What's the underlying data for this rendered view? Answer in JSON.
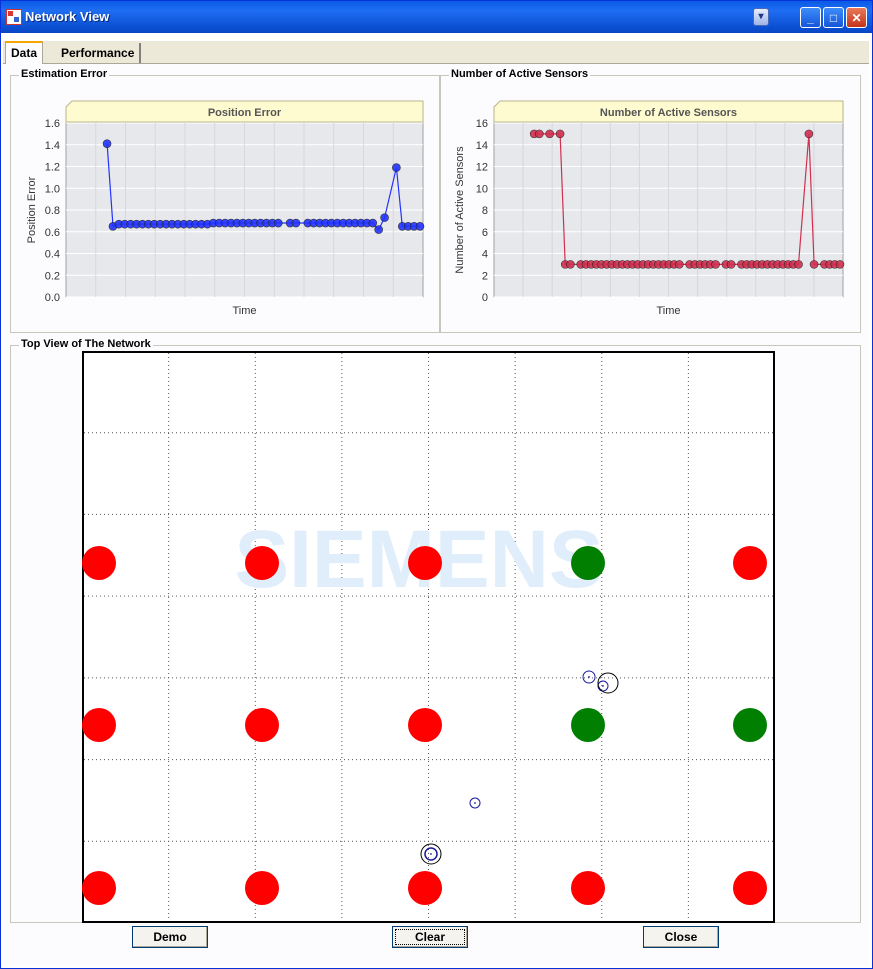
{
  "window": {
    "title": "Network View"
  },
  "tabs": [
    {
      "label": "Data",
      "active": true
    },
    {
      "label": "Performance",
      "active": false
    }
  ],
  "groups": {
    "estimation": "Estimation Error",
    "sensors": "Number of Active Sensors",
    "topview": "Top View of The Network"
  },
  "chart_data": [
    {
      "type": "line",
      "title": "Position Error",
      "xlabel": "Time",
      "ylabel": "Position Error",
      "ylim": [
        0,
        1.6
      ],
      "yticks": [
        "0.0",
        "0.2",
        "0.4",
        "0.6",
        "0.8",
        "1.0",
        "1.2",
        "1.4",
        "1.6"
      ],
      "grid": true,
      "color": "#2233ff",
      "values": [
        1.41,
        0.65,
        0.67,
        0.67,
        0.67,
        0.67,
        0.67,
        0.67,
        0.67,
        0.67,
        0.67,
        0.67,
        0.67,
        0.67,
        0.67,
        0.67,
        0.67,
        0.67,
        0.68,
        0.68,
        0.68,
        0.68,
        0.68,
        0.68,
        0.68,
        0.68,
        0.68,
        0.68,
        0.68,
        0.68,
        null,
        0.68,
        0.68,
        null,
        0.68,
        0.68,
        0.68,
        0.68,
        0.68,
        0.68,
        0.68,
        0.68,
        0.68,
        0.68,
        0.68,
        0.68,
        0.62,
        0.73,
        null,
        1.19,
        0.65,
        0.65,
        0.65,
        0.65
      ]
    },
    {
      "type": "line",
      "title": "Number of Active Sensors",
      "xlabel": "Time",
      "ylabel": "Number of Active Sensors",
      "ylim": [
        0,
        16
      ],
      "yticks": [
        "0",
        "2",
        "4",
        "6",
        "8",
        "10",
        "12",
        "14",
        "16"
      ],
      "grid": true,
      "color": "#d03050",
      "values": [
        15,
        15,
        null,
        15,
        null,
        15,
        3,
        3,
        null,
        3,
        3,
        3,
        3,
        3,
        3,
        3,
        3,
        3,
        3,
        3,
        3,
        3,
        3,
        3,
        3,
        3,
        3,
        3,
        3,
        null,
        3,
        3,
        3,
        3,
        3,
        3,
        null,
        3,
        3,
        null,
        3,
        3,
        3,
        3,
        3,
        3,
        3,
        3,
        3,
        3,
        3,
        3,
        null,
        15,
        3,
        null,
        3,
        3,
        3,
        3
      ]
    }
  ],
  "network": {
    "watermark": "SIEMENS",
    "grid_cols": 8,
    "grid_rows": 7,
    "sensors": [
      {
        "col": 0,
        "row": 0,
        "active": false
      },
      {
        "col": 1,
        "row": 0,
        "active": false
      },
      {
        "col": 2,
        "row": 0,
        "active": false
      },
      {
        "col": 3,
        "row": 0,
        "active": true
      },
      {
        "col": 4,
        "row": 0,
        "active": false
      },
      {
        "col": 0,
        "row": 1,
        "active": false
      },
      {
        "col": 1,
        "row": 1,
        "active": false
      },
      {
        "col": 2,
        "row": 1,
        "active": false
      },
      {
        "col": 3,
        "row": 1,
        "active": true
      },
      {
        "col": 4,
        "row": 1,
        "active": true
      },
      {
        "col": 0,
        "row": 2,
        "active": false
      },
      {
        "col": 1,
        "row": 2,
        "active": false
      },
      {
        "col": 2,
        "row": 2,
        "active": false
      },
      {
        "col": 3,
        "row": 2,
        "active": false
      },
      {
        "col": 4,
        "row": 2,
        "active": false
      }
    ],
    "colors": {
      "active": "#007f00",
      "inactive": "#ff0000",
      "target": "#1a1aa0"
    }
  },
  "buttons": {
    "demo": "Demo",
    "clear": "Clear",
    "close": "Close"
  }
}
